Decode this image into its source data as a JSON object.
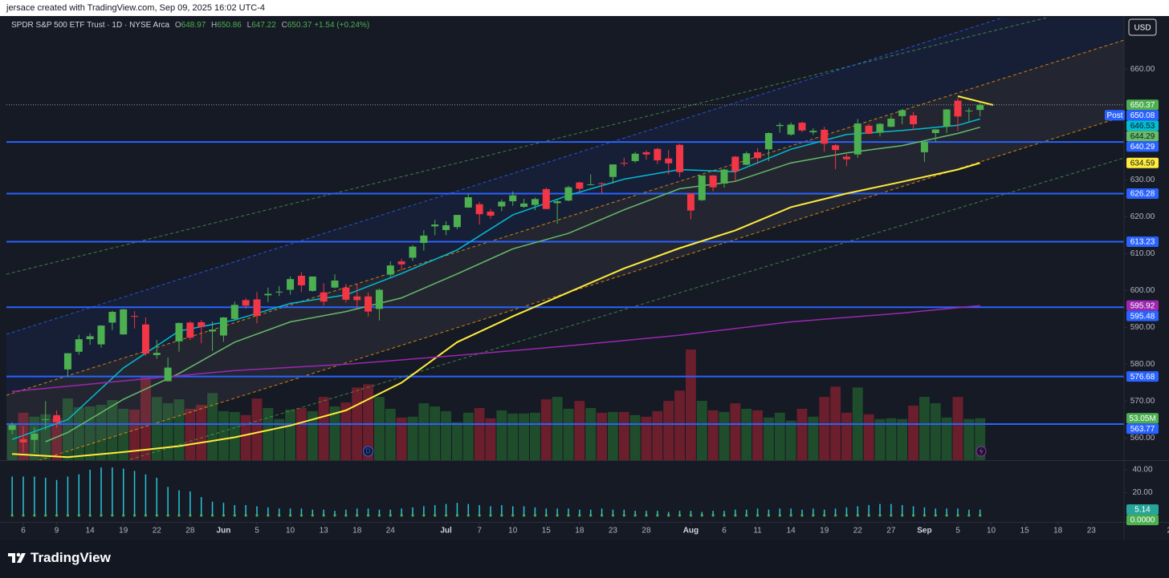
{
  "header": {
    "credit": "jersace created with TradingView.com, Sep 09, 2025 16:02 UTC-4"
  },
  "footer": {
    "brand": "TradingView"
  },
  "chart_data": {
    "type": "candlestick",
    "title": "SPDR S&P 500 ETF Trust · 1D · NYSE Arca",
    "ohlc_letters": [
      "O",
      "H",
      "L",
      "C"
    ],
    "change": {
      "value": 1.54,
      "label": "+1.54"
    },
    "change_pct": {
      "value": 0.24,
      "label": "(+0.24%)"
    },
    "currency": "USD",
    "up_color": "#4caf50",
    "down_color": "#f23645",
    "candles": {
      "open": [
        562.2,
        559.7,
        559.5,
        565.0,
        566.2,
        578.6,
        583.4,
        586.8,
        585.4,
        591.3,
        588.1,
        593.1,
        590.8,
        582.5,
        575.4,
        586.2,
        591.3,
        591.4,
        588.9,
        587.8,
        592.3,
        597.4,
        597.6,
        598.7,
        599.7,
        600.2,
        604.0,
        599.9,
        599.5,
        600.8,
        600.8,
        598.4,
        598.4,
        595.0,
        604.3,
        607.9,
        608.9,
        612.9,
        617.4,
        616.4,
        617.2,
        622.5,
        623.4,
        621.4,
        622.8,
        624.2,
        622.7,
        623.2,
        627.5,
        623.7,
        624.4,
        629.3,
        628.8,
        629.1,
        630.8,
        634.6,
        635.1,
        637.5,
        638.4,
        635.8,
        639.5,
        626.3,
        624.5,
        631.2,
        629.0,
        636.3,
        634.1,
        637.5,
        638.3,
        644.6,
        642.3,
        645.5,
        642.9,
        643.6,
        639.4,
        636.3,
        636.9,
        644.7,
        642.8,
        644.4,
        647.3,
        647.5,
        637.5,
        642.7,
        644.4,
        651.5,
        648.6,
        648.97
      ],
      "high": [
        564.3,
        563.3,
        562.9,
        570.0,
        567.5,
        583.0,
        588.0,
        588.4,
        590.6,
        594.5,
        595.0,
        594.4,
        592.7,
        586.6,
        581.8,
        591.3,
        591.7,
        592.0,
        591.6,
        592.8,
        597.0,
        597.9,
        599.6,
        600.8,
        601.2,
        603.8,
        605.0,
        603.8,
        602.0,
        604.4,
        601.8,
        601.8,
        599.5,
        600.5,
        607.9,
        608.6,
        612.3,
        616.4,
        619.2,
        618.8,
        620.5,
        626.3,
        624.0,
        622.1,
        624.7,
        626.9,
        624.9,
        625.2,
        627.9,
        624.7,
        628.4,
        629.5,
        631.5,
        629.3,
        634.2,
        636.0,
        637.6,
        638.0,
        638.7,
        638.1,
        639.8,
        626.3,
        631.2,
        631.3,
        633.0,
        636.5,
        637.7,
        638.6,
        642.9,
        645.5,
        645.6,
        645.8,
        644.0,
        644.4,
        639.7,
        637.0,
        646.5,
        645.2,
        645.4,
        647.4,
        649.3,
        648.4,
        640.5,
        643.7,
        649.2,
        652.2,
        649.5,
        650.86
      ],
      "low": [
        561.0,
        556.0,
        556.0,
        562.2,
        562.8,
        576.5,
        582.6,
        585.3,
        584.5,
        589.3,
        588.0,
        589.7,
        582.3,
        581.5,
        575.4,
        583.4,
        586.6,
        585.7,
        583.6,
        586.1,
        591.8,
        595.1,
        591.1,
        596.9,
        598.5,
        598.9,
        599.6,
        599.7,
        595.9,
        600.6,
        596.8,
        595.2,
        592.9,
        591.9,
        603.7,
        605.5,
        608.0,
        610.8,
        615.0,
        615.0,
        616.6,
        622.4,
        617.9,
        619.5,
        621.5,
        623.0,
        622.4,
        621.8,
        622.0,
        618.1,
        624.2,
        626.5,
        628.5,
        626.3,
        629.0,
        633.7,
        634.6,
        635.5,
        634.3,
        631.5,
        630.8,
        619.3,
        624.3,
        626.9,
        627.9,
        629.6,
        634.0,
        634.3,
        635.1,
        642.8,
        642.0,
        642.9,
        642.2,
        637.6,
        632.9,
        633.7,
        636.0,
        642.4,
        641.8,
        644.3,
        645.1,
        643.5,
        634.9,
        640.3,
        642.7,
        643.3,
        645.9,
        647.22
      ],
      "close": [
        563.5,
        558.8,
        561.2,
        565.1,
        564.3,
        583.0,
        586.8,
        587.6,
        590.5,
        594.2,
        594.9,
        592.9,
        582.9,
        583.1,
        579.1,
        591.2,
        587.2,
        590.1,
        589.4,
        592.7,
        596.1,
        595.9,
        593.1,
        599.1,
        599.7,
        603.1,
        601.4,
        603.8,
        597.0,
        602.7,
        597.5,
        597.4,
        594.3,
        600.2,
        606.8,
        607.1,
        611.9,
        614.9,
        617.9,
        617.7,
        620.5,
        625.3,
        620.7,
        620.3,
        624.1,
        625.8,
        623.6,
        624.8,
        622.1,
        624.2,
        628.0,
        627.6,
        628.8,
        628.9,
        634.2,
        634.4,
        637.1,
        636.9,
        635.3,
        634.5,
        632.1,
        621.7,
        631.2,
        628.0,
        632.8,
        632.3,
        637.2,
        635.9,
        642.7,
        644.9,
        645.0,
        643.4,
        643.3,
        639.8,
        638.1,
        635.6,
        645.3,
        642.5,
        645.2,
        646.6,
        648.9,
        645.1,
        640.3,
        643.7,
        649.1,
        647.2,
        648.8,
        650.37
      ]
    },
    "volume": {
      "values": [
        45,
        60,
        55,
        58,
        53,
        78,
        67,
        68,
        70,
        76,
        65,
        64,
        105,
        80,
        72,
        77,
        65,
        70,
        85,
        62,
        61,
        57,
        78,
        66,
        52,
        64,
        66,
        62,
        80,
        68,
        73,
        92,
        96,
        80,
        65,
        54,
        55,
        72,
        68,
        62,
        48,
        60,
        66,
        53,
        63,
        59,
        59,
        60,
        77,
        80,
        65,
        75,
        66,
        60,
        61,
        61,
        57,
        55,
        62,
        75,
        88,
        140,
        75,
        63,
        61,
        72,
        65,
        63,
        54,
        60,
        50,
        65,
        55,
        80,
        93,
        60,
        92,
        58,
        52,
        53,
        52,
        69,
        80,
        72,
        54,
        80,
        52,
        53.05
      ],
      "last_label": "53.05M",
      "up_color": "#1f4d2c",
      "down_color": "#6b1e2c",
      "tag_color": "#4caf50",
      "ylim": [
        0,
        560
      ]
    },
    "ylim": [
      554,
      674
    ],
    "yticks": [
      {
        "value": 560,
        "label": "560.00"
      },
      {
        "value": 570,
        "label": "570.00"
      },
      {
        "value": 580,
        "label": "580.00"
      },
      {
        "value": 590,
        "label": "590.00"
      },
      {
        "value": 600,
        "label": "600.00"
      },
      {
        "value": 610,
        "label": "610.00"
      },
      {
        "value": 620,
        "label": "620.00"
      },
      {
        "value": 630,
        "label": "630.00"
      },
      {
        "value": 660,
        "label": "660.00"
      }
    ],
    "xticks": [
      {
        "value": 1,
        "label": "6"
      },
      {
        "value": 4,
        "label": "9"
      },
      {
        "value": 7,
        "label": "14"
      },
      {
        "value": 10,
        "label": "19"
      },
      {
        "value": 13,
        "label": "22"
      },
      {
        "value": 16,
        "label": "28"
      },
      {
        "value": 19,
        "label": "Jun"
      },
      {
        "value": 22,
        "label": "5"
      },
      {
        "value": 25,
        "label": "10"
      },
      {
        "value": 28,
        "label": "13"
      },
      {
        "value": 31,
        "label": "18"
      },
      {
        "value": 34,
        "label": "24"
      },
      {
        "value": 39,
        "label": "Jul"
      },
      {
        "value": 42,
        "label": "7"
      },
      {
        "value": 45,
        "label": "10"
      },
      {
        "value": 48,
        "label": "15"
      },
      {
        "value": 51,
        "label": "18"
      },
      {
        "value": 54,
        "label": "23"
      },
      {
        "value": 57,
        "label": "28"
      },
      {
        "value": 61,
        "label": "Aug"
      },
      {
        "value": 64,
        "label": "6"
      },
      {
        "value": 67,
        "label": "11"
      },
      {
        "value": 70,
        "label": "14"
      },
      {
        "value": 73,
        "label": "19"
      },
      {
        "value": 76,
        "label": "22"
      },
      {
        "value": 79,
        "label": "27"
      },
      {
        "value": 82,
        "label": "Sep"
      },
      {
        "value": 85,
        "label": "5"
      },
      {
        "value": 88,
        "label": "10"
      },
      {
        "value": 91,
        "label": "15"
      },
      {
        "value": 94,
        "label": "18"
      },
      {
        "value": 97,
        "label": "23"
      },
      {
        "value": 104,
        "label": "2"
      }
    ],
    "lines": [
      {
        "color": "#00bcd4",
        "tag_text_color": "#131722",
        "width": 1.5,
        "x": [
          0,
          5,
          10,
          15,
          20,
          25,
          30,
          35,
          40,
          45,
          50,
          55,
          60,
          65,
          70,
          75,
          80,
          85,
          87
        ],
        "values": [
          559.6,
          565,
          579,
          589,
          592,
          596.5,
          598.8,
          604.6,
          611,
          620.5,
          625.8,
          630.2,
          632.8,
          632.2,
          638.3,
          642.3,
          643.4,
          644.8,
          646.53
        ]
      },
      {
        "color": "#66bb6a",
        "tag_text_color": "#131722",
        "width": 1.5,
        "x": [
          3,
          5,
          10,
          15,
          20,
          25,
          30,
          35,
          40,
          45,
          50,
          55,
          60,
          65,
          70,
          75,
          80,
          85,
          87
        ],
        "values": [
          559,
          561.5,
          570.5,
          577.5,
          586,
          591.5,
          594.3,
          598,
          604.5,
          611.3,
          615.5,
          621.9,
          627.6,
          629.6,
          634.6,
          637.3,
          639.3,
          642.6,
          644.29
        ]
      },
      {
        "color": "#ffeb3b",
        "tag_text_color": "#131722",
        "width": 2,
        "x": [
          0,
          5,
          10,
          15,
          20,
          25,
          30,
          35,
          40,
          45,
          50,
          55,
          60,
          65,
          70,
          75,
          80,
          85,
          87
        ],
        "values": [
          555.7,
          554.8,
          556.2,
          557.8,
          560.2,
          563.4,
          567.5,
          575,
          586,
          593,
          599.5,
          606,
          611.5,
          616.3,
          622.6,
          626.3,
          629.5,
          632.8,
          634.59
        ]
      },
      {
        "color": "#9c27b0",
        "tag_text_color": "#ffffff",
        "width": 1.5,
        "x": [
          0,
          10,
          20,
          30,
          40,
          50,
          60,
          70,
          80,
          87
        ],
        "values": [
          572.6,
          575.5,
          578.3,
          580,
          582.4,
          585,
          587.9,
          591.5,
          593.9,
          595.92
        ]
      }
    ],
    "levels": {
      "color": "#2962ff",
      "values": [
        640.29,
        626.28,
        613.23,
        595.48,
        576.68,
        563.77
      ]
    },
    "post_market": {
      "label": "Post",
      "value": 650.08,
      "color": "#2962ff"
    },
    "dividend_marker": {
      "label": "D",
      "x": 32
    },
    "indicator": {
      "type": "histogram",
      "color": "#26c6da",
      "tag_color": "#26a69a",
      "values": [
        34,
        34,
        34,
        33,
        31,
        34,
        36,
        40,
        42,
        42,
        41,
        39,
        36,
        33,
        25,
        22,
        21,
        16,
        12,
        11,
        9,
        9,
        8,
        7,
        6,
        6,
        6,
        5,
        5,
        4,
        5,
        6,
        6,
        5,
        5,
        6,
        7,
        8,
        9,
        10,
        11,
        10,
        9,
        8,
        9,
        8,
        8,
        7,
        6,
        6,
        6,
        5,
        5,
        6,
        5,
        5,
        4,
        4,
        4,
        3,
        4,
        4,
        3,
        4,
        4,
        5,
        5,
        6,
        5,
        6,
        6,
        5,
        6,
        5,
        6,
        7,
        8,
        9,
        10,
        10,
        9,
        8,
        7,
        6,
        6,
        6,
        5,
        5.14
      ],
      "ylim": [
        -5,
        47
      ],
      "yticks": [
        {
          "value": 20,
          "label": "20.00"
        },
        {
          "value": 40,
          "label": "40.00"
        }
      ],
      "dots": {
        "color": "#4caf50",
        "last_label": "0.0000",
        "values": [
          0,
          0,
          0,
          0,
          0,
          0,
          0,
          0,
          0,
          0,
          0,
          0,
          0,
          0,
          0,
          0,
          0,
          0,
          0,
          0,
          0,
          0,
          0,
          0,
          0,
          0,
          0,
          0,
          0,
          0,
          0,
          0,
          0,
          0,
          0,
          0,
          0,
          0,
          0,
          0,
          0,
          0,
          0,
          0,
          0,
          0,
          0,
          0,
          0,
          0,
          0,
          0,
          0,
          0,
          0,
          0,
          0,
          0,
          0,
          0,
          0,
          0,
          0,
          0,
          0,
          0,
          0,
          0,
          0,
          0,
          0,
          0,
          0,
          0,
          0,
          0,
          0,
          0,
          0,
          0,
          0,
          0,
          0,
          0,
          0,
          0,
          0,
          0
        ]
      }
    }
  }
}
